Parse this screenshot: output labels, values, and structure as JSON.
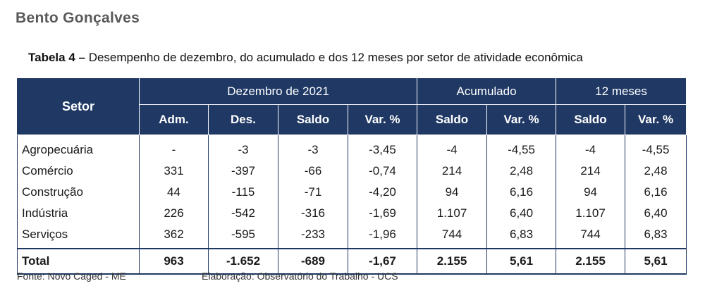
{
  "city_title": "Bento Gonçalves",
  "caption": {
    "label": "Tabela 4 –",
    "text": "Desempenho de dezembro, do acumulado e dos 12 meses por setor de atividade econômica"
  },
  "header": {
    "setor": "Setor",
    "groups": [
      "Dezembro de 2021",
      "Acumulado",
      "12 meses"
    ],
    "subheaders": [
      "Adm.",
      "Des.",
      "Saldo",
      "Var. %",
      "Saldo",
      "Var. %",
      "Saldo",
      "Var. %"
    ]
  },
  "rows": [
    {
      "setor": "Agropecuária",
      "values": [
        "-",
        "-3",
        "-3",
        "-3,45",
        "-4",
        "-4,55",
        "-4",
        "-4,55"
      ]
    },
    {
      "setor": "Comércio",
      "values": [
        "331",
        "-397",
        "-66",
        "-0,74",
        "214",
        "2,48",
        "214",
        "2,48"
      ]
    },
    {
      "setor": "Construção",
      "values": [
        "44",
        "-115",
        "-71",
        "-4,20",
        "94",
        "6,16",
        "94",
        "6,16"
      ]
    },
    {
      "setor": "Indústria",
      "values": [
        "226",
        "-542",
        "-316",
        "-1,69",
        "1.107",
        "6,40",
        "1.107",
        "6,40"
      ]
    },
    {
      "setor": "Serviços",
      "values": [
        "362",
        "-595",
        "-233",
        "-1,96",
        "744",
        "6,83",
        "744",
        "6,83"
      ]
    }
  ],
  "total": {
    "setor": "Total",
    "values": [
      "963",
      "-1.652",
      "-689",
      "-1,67",
      "2.155",
      "5,61",
      "2.155",
      "5,61"
    ]
  },
  "footer": {
    "fonte": "Fonte: Novo Caged - ME",
    "elaboracao": "Elaboração: Observatório do Trabalho - UCS"
  },
  "colors": {
    "header_bg": "#1f3864",
    "header_text": "#ffffff"
  }
}
